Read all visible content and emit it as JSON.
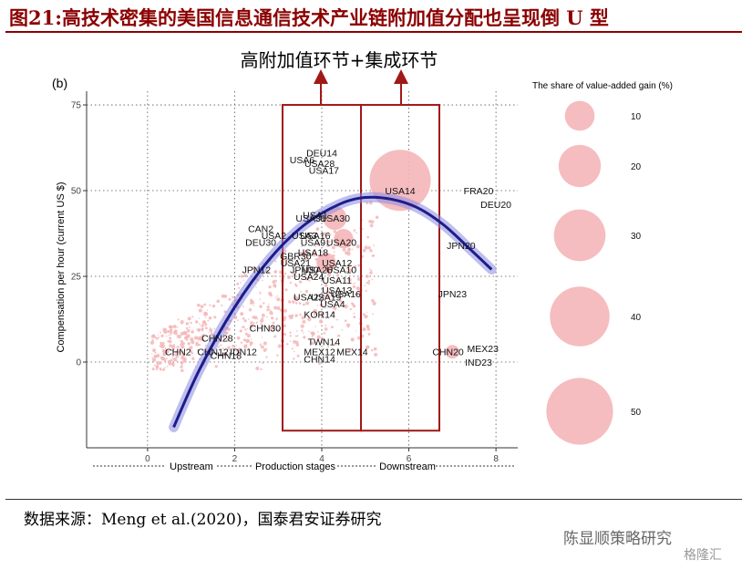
{
  "title": "图21:高技术密集的美国信息通信技术产业链附加值分配也呈现倒 U 型",
  "source": "数据来源：Meng et al.(2020)，国泰君安证券研究",
  "watermark": "陈显顺策略研究",
  "watermark2": "格隆汇",
  "chart_data": {
    "type": "scatter",
    "panel_label": "(b)",
    "annotation": "高附加值环节+集成环节",
    "ylabel": "Compensation per hour (current US $)",
    "xlabel": "Production stages",
    "x_left_label": "Upstream",
    "x_right_label": "Downstream",
    "xlim": [
      -1.4,
      8.5
    ],
    "ylim": [
      -25,
      79
    ],
    "xticks": [
      0,
      2,
      4,
      6,
      8
    ],
    "yticks": [
      0,
      25,
      50,
      75
    ],
    "grid": true,
    "legend_title": "The share of value-added gain (%)",
    "legend_sizes": [
      10,
      20,
      30,
      40,
      50
    ],
    "point_color": "#f4b6b8",
    "curve_color": "#1c1c8c",
    "box_color": "#a01818",
    "boxes": [
      {
        "x0": 3.1,
        "x1": 4.9,
        "y0": -20,
        "y1": 75
      },
      {
        "x0": 4.9,
        "x1": 6.7,
        "y0": -20,
        "y1": 75
      }
    ],
    "fit_curve": {
      "x": [
        0.6,
        1.2,
        2.0,
        2.8,
        3.6,
        4.4,
        5.0,
        5.6,
        6.2,
        6.8,
        7.4,
        7.9
      ],
      "y": [
        -19,
        -2,
        16,
        30,
        40,
        46,
        48,
        47.5,
        45,
        40,
        33,
        27
      ]
    },
    "bubbles": [
      {
        "label": "USA14",
        "x": 5.8,
        "y": 53,
        "size": 20
      },
      {
        "label": "USA30",
        "x": 4.3,
        "y": 42,
        "size": 3
      },
      {
        "label": "USA20",
        "x": 4.5,
        "y": 36,
        "size": 2
      },
      {
        "label": "USA12",
        "x": 4.1,
        "y": 29,
        "size": 2
      },
      {
        "label": "CHN20",
        "x": 7.0,
        "y": 3,
        "size": 1
      }
    ],
    "labeled_points": [
      {
        "label": "DEU14",
        "x": 4.0,
        "y": 61
      },
      {
        "label": "USA6",
        "x": 3.55,
        "y": 59
      },
      {
        "label": "USA28",
        "x": 3.95,
        "y": 58
      },
      {
        "label": "USA17",
        "x": 4.05,
        "y": 56
      },
      {
        "label": "USA14",
        "x": 5.8,
        "y": 50
      },
      {
        "label": "FRA20",
        "x": 7.6,
        "y": 50
      },
      {
        "label": "DEU20",
        "x": 8.0,
        "y": 46
      },
      {
        "label": "USA1",
        "x": 3.85,
        "y": 43
      },
      {
        "label": "USA31",
        "x": 3.75,
        "y": 42
      },
      {
        "label": "USA30",
        "x": 4.3,
        "y": 42
      },
      {
        "label": "CAN2",
        "x": 2.6,
        "y": 39
      },
      {
        "label": "USA2",
        "x": 2.9,
        "y": 37
      },
      {
        "label": "USA3",
        "x": 3.6,
        "y": 37
      },
      {
        "label": "USA16",
        "x": 3.85,
        "y": 37
      },
      {
        "label": "USA9",
        "x": 3.8,
        "y": 35
      },
      {
        "label": "USA20",
        "x": 4.45,
        "y": 35
      },
      {
        "label": "DEU30",
        "x": 2.6,
        "y": 35
      },
      {
        "label": "JPN20",
        "x": 7.2,
        "y": 34
      },
      {
        "label": "USA18",
        "x": 3.8,
        "y": 32
      },
      {
        "label": "GBR30",
        "x": 3.4,
        "y": 31
      },
      {
        "label": "USA21",
        "x": 3.4,
        "y": 29
      },
      {
        "label": "USA12",
        "x": 4.35,
        "y": 29
      },
      {
        "label": "JPN12",
        "x": 2.5,
        "y": 27
      },
      {
        "label": "JPN30",
        "x": 3.6,
        "y": 27
      },
      {
        "label": "USA26",
        "x": 3.9,
        "y": 27
      },
      {
        "label": "USA10",
        "x": 4.45,
        "y": 27
      },
      {
        "label": "USA24",
        "x": 3.7,
        "y": 25
      },
      {
        "label": "USA11",
        "x": 4.35,
        "y": 24
      },
      {
        "label": "USA13",
        "x": 4.35,
        "y": 21
      },
      {
        "label": "USA16",
        "x": 4.55,
        "y": 20
      },
      {
        "label": "USA22",
        "x": 3.7,
        "y": 19
      },
      {
        "label": "USA19",
        "x": 4.1,
        "y": 19
      },
      {
        "label": "JPN23",
        "x": 7.0,
        "y": 20
      },
      {
        "label": "USA4",
        "x": 4.25,
        "y": 17
      },
      {
        "label": "KOR14",
        "x": 3.95,
        "y": 14
      },
      {
        "label": "CHN30",
        "x": 2.7,
        "y": 10
      },
      {
        "label": "CHN28",
        "x": 1.6,
        "y": 7
      },
      {
        "label": "TWN14",
        "x": 4.05,
        "y": 6
      },
      {
        "label": "CHN2",
        "x": 0.7,
        "y": 3
      },
      {
        "label": "CHN12",
        "x": 1.5,
        "y": 3
      },
      {
        "label": "IDN12",
        "x": 2.2,
        "y": 3
      },
      {
        "label": "CHN18",
        "x": 1.8,
        "y": 2
      },
      {
        "label": "MEX12",
        "x": 3.95,
        "y": 3
      },
      {
        "label": "MEX14",
        "x": 4.7,
        "y": 3
      },
      {
        "label": "CHN14",
        "x": 3.95,
        "y": 1
      },
      {
        "label": "CHN20",
        "x": 6.9,
        "y": 3
      },
      {
        "label": "MEX23",
        "x": 7.7,
        "y": 4
      },
      {
        "label": "IND23",
        "x": 7.6,
        "y": 0
      }
    ]
  }
}
